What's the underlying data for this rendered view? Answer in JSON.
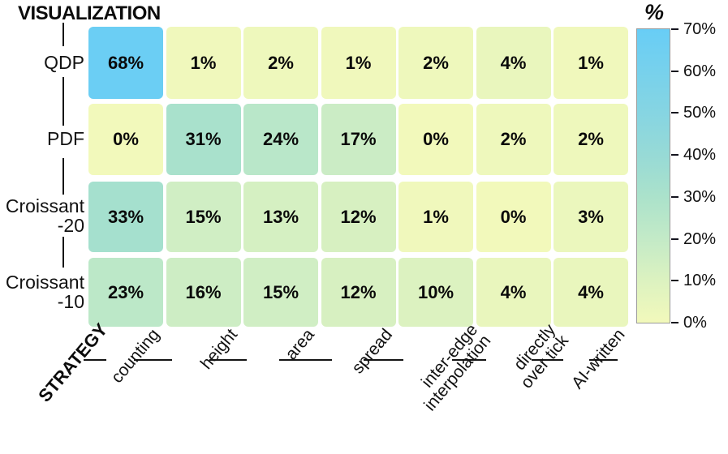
{
  "chart_data": {
    "type": "heatmap",
    "y_axis_title": "VISUALIZATION",
    "x_axis_title": "STRATEGY",
    "rows": [
      "QDP",
      "PDF",
      "Croissant\n-20",
      "Croissant\n-10"
    ],
    "columns": [
      "counting",
      "height",
      "area",
      "spread",
      "inter-edge\ninterpolation",
      "directly\nover tick",
      "AI-written"
    ],
    "values_percent": [
      [
        68,
        1,
        2,
        1,
        2,
        4,
        1
      ],
      [
        0,
        31,
        24,
        17,
        0,
        2,
        2
      ],
      [
        33,
        15,
        13,
        12,
        1,
        0,
        3
      ],
      [
        23,
        16,
        15,
        12,
        10,
        4,
        4
      ]
    ],
    "cell_label_suffix": "%",
    "grid": "off",
    "legend_position": "right-colorbar",
    "colorbar": {
      "title": "%",
      "min": 0,
      "max": 70,
      "ticks": [
        "70%",
        "60%",
        "50%",
        "40%",
        "30%",
        "20%",
        "10%",
        "0%"
      ],
      "colormap_stops": [
        "#F2F9BB",
        "#DCF2C0",
        "#C3EAC7",
        "#ABE2CB",
        "#97DAD6",
        "#86D5E2",
        "#77D1EC",
        "#68CDF6"
      ]
    },
    "colors": {
      "max_cell_blue": "#6CCEF5",
      "min_cell_yellow": "#F2F9BB",
      "axis_line": "#151515",
      "text": "#0c0c0c"
    }
  }
}
